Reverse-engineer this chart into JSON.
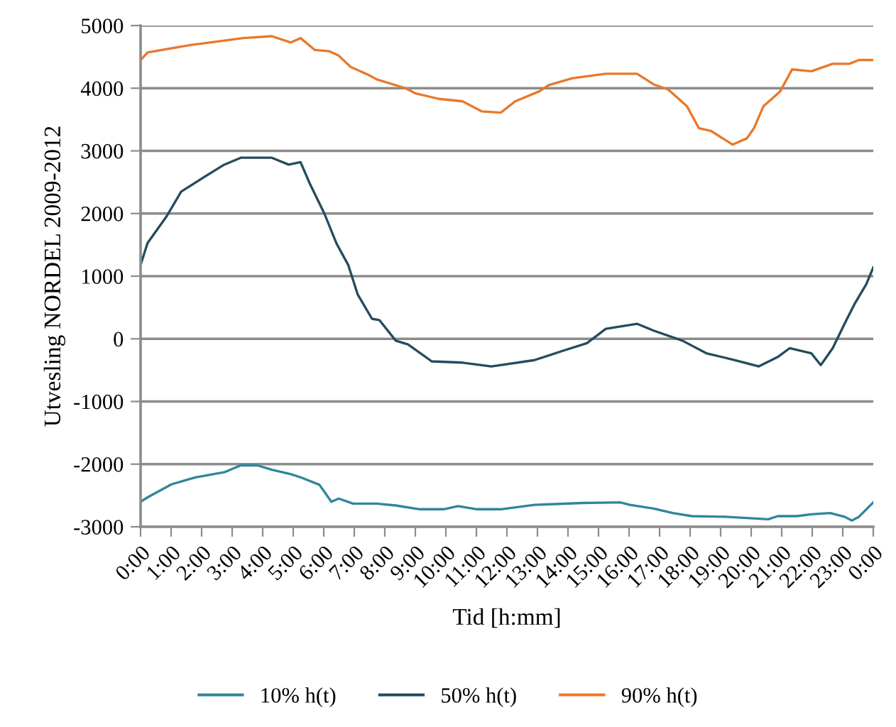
{
  "chart_data": {
    "type": "line",
    "xlabel": "Tid [h:mm]",
    "ylabel": "Utvesling NORDEL 2009-2012",
    "xlim": [
      0,
      24
    ],
    "ylim": [
      -3000,
      5000
    ],
    "xticks": [
      {
        "value": 0,
        "label": "0:00"
      },
      {
        "value": 1,
        "label": "1:00"
      },
      {
        "value": 2,
        "label": "2:00"
      },
      {
        "value": 3,
        "label": "3:00"
      },
      {
        "value": 4,
        "label": "4:00"
      },
      {
        "value": 5,
        "label": "5:00"
      },
      {
        "value": 6,
        "label": "6:00"
      },
      {
        "value": 7,
        "label": "7:00"
      },
      {
        "value": 8,
        "label": "8:00"
      },
      {
        "value": 9,
        "label": "9:00"
      },
      {
        "value": 10,
        "label": "10:00"
      },
      {
        "value": 11,
        "label": "11:00"
      },
      {
        "value": 12,
        "label": "12:00"
      },
      {
        "value": 13,
        "label": "13:00"
      },
      {
        "value": 14,
        "label": "14:00"
      },
      {
        "value": 15,
        "label": "15:00"
      },
      {
        "value": 16,
        "label": "16:00"
      },
      {
        "value": 17,
        "label": "17:00"
      },
      {
        "value": 18,
        "label": "18:00"
      },
      {
        "value": 19,
        "label": "19:00"
      },
      {
        "value": 20,
        "label": "20:00"
      },
      {
        "value": 21,
        "label": "21:00"
      },
      {
        "value": 22,
        "label": "22:00"
      },
      {
        "value": 23,
        "label": "23:00"
      },
      {
        "value": 24,
        "label": "0:00"
      }
    ],
    "yticks": [
      -3000,
      -2000,
      -1000,
      0,
      1000,
      2000,
      3000,
      4000,
      5000
    ],
    "grid": "y",
    "legend": "bottom",
    "marker": "none",
    "line_style": "solid",
    "series": [
      {
        "name": "10% h(t)",
        "color": "#31859c",
        "x": [
          0,
          0.23,
          1.02,
          1.8,
          2.74,
          3.28,
          3.83,
          4.3,
          4.92,
          5.24,
          5.86,
          6.25,
          6.49,
          6.96,
          7.74,
          8.36,
          9.15,
          9.93,
          10.4,
          11.02,
          11.8,
          12.9,
          14.46,
          15.71,
          16.03,
          16.81,
          17.43,
          18.06,
          19.15,
          20.56,
          20.87,
          21.5,
          21.97,
          22.59,
          23.06,
          23.3,
          23.53,
          24
        ],
        "values": [
          -2600,
          -2530,
          -2320,
          -2210,
          -2130,
          -2020,
          -2020,
          -2090,
          -2160,
          -2210,
          -2330,
          -2600,
          -2550,
          -2630,
          -2630,
          -2660,
          -2720,
          -2720,
          -2670,
          -2720,
          -2720,
          -2650,
          -2620,
          -2610,
          -2650,
          -2710,
          -2780,
          -2830,
          -2840,
          -2880,
          -2830,
          -2830,
          -2800,
          -2780,
          -2840,
          -2900,
          -2840,
          -2610
        ]
      },
      {
        "name": "50% h(t)",
        "color": "#254b5e",
        "x": [
          0,
          0.23,
          0.86,
          1.33,
          2.11,
          2.74,
          3.28,
          4.3,
          4.85,
          5.24,
          5.55,
          6.02,
          6.41,
          6.8,
          7.11,
          7.58,
          7.82,
          8.36,
          8.76,
          9.54,
          10.55,
          11.49,
          12.9,
          13.84,
          14.62,
          15.24,
          16.26,
          16.81,
          17.75,
          18.53,
          19.47,
          20.25,
          20.87,
          21.26,
          21.97,
          22.28,
          22.67,
          23.06,
          23.38,
          23.77,
          24
        ],
        "values": [
          1180,
          1530,
          1960,
          2350,
          2590,
          2780,
          2890,
          2890,
          2780,
          2820,
          2470,
          2000,
          1530,
          1180,
          710,
          320,
          300,
          -30,
          -90,
          -360,
          -380,
          -440,
          -340,
          -190,
          -70,
          160,
          240,
          130,
          -30,
          -230,
          -340,
          -440,
          -290,
          -150,
          -230,
          -420,
          -150,
          240,
          550,
          870,
          1140
        ]
      },
      {
        "name": "90% h(t)",
        "color": "#e8782b",
        "x": [
          0,
          0.23,
          1.64,
          2.27,
          3.36,
          4.3,
          4.92,
          5.24,
          5.71,
          6.18,
          6.49,
          6.88,
          7.43,
          7.74,
          8.68,
          8.99,
          9.77,
          10.55,
          11.18,
          11.8,
          12.27,
          13.06,
          13.37,
          14.15,
          15.24,
          16.26,
          16.81,
          17.28,
          17.9,
          18.29,
          18.68,
          19.39,
          19.86,
          20.09,
          20.4,
          20.95,
          21.34,
          21.97,
          22.67,
          23.22,
          23.53,
          24
        ],
        "values": [
          4450,
          4570,
          4690,
          4730,
          4800,
          4830,
          4730,
          4800,
          4610,
          4590,
          4520,
          4340,
          4220,
          4140,
          4000,
          3920,
          3830,
          3790,
          3630,
          3610,
          3790,
          3950,
          4050,
          4160,
          4230,
          4230,
          4060,
          3980,
          3710,
          3360,
          3320,
          3100,
          3200,
          3360,
          3710,
          3950,
          4300,
          4270,
          4390,
          4390,
          4450,
          4450
        ]
      }
    ]
  }
}
